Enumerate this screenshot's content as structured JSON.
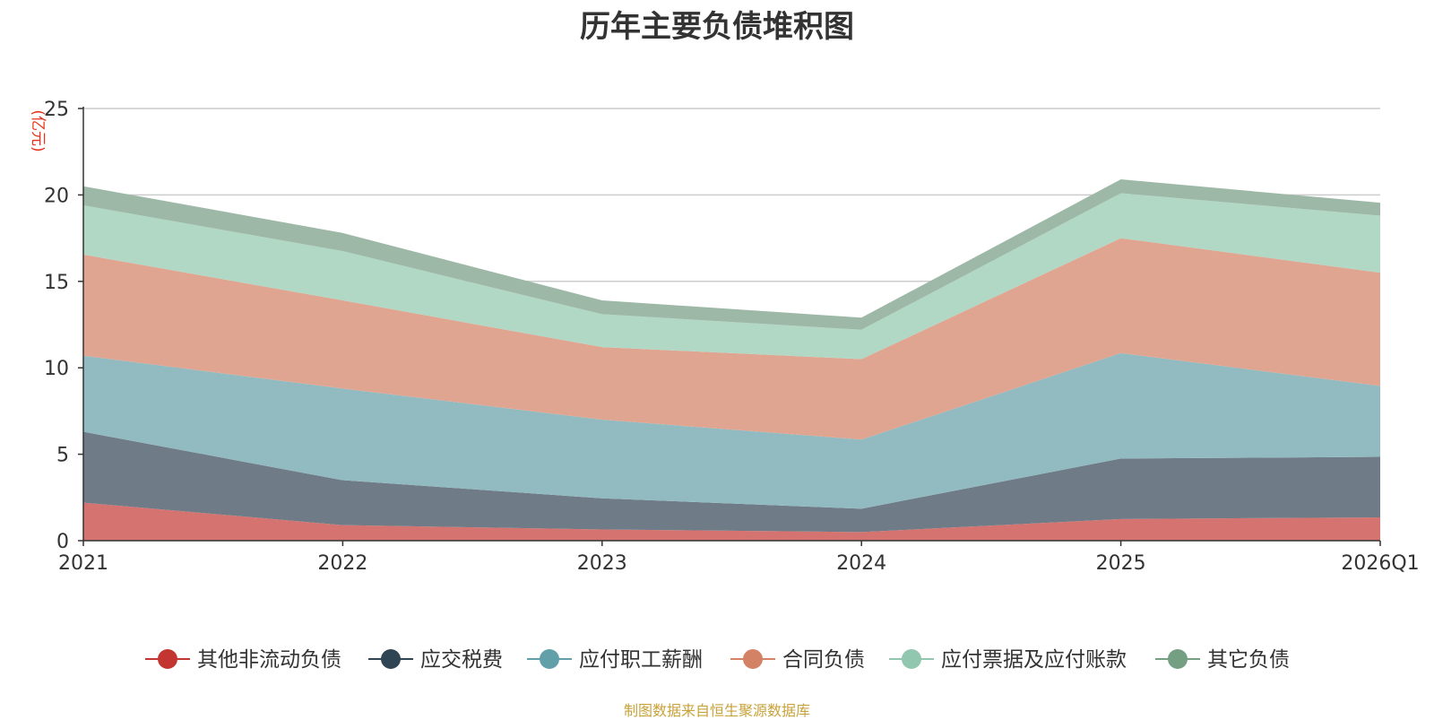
{
  "chart_data": {
    "type": "area",
    "stacked": true,
    "title": "历年主要负债堆积图",
    "ylabel": "(亿元)",
    "xlabel": "",
    "categories": [
      "2021",
      "2022",
      "2023",
      "2024",
      "2025",
      "2026Q1"
    ],
    "ylim": [
      0,
      25
    ],
    "yticks": [
      "0",
      "5",
      "10",
      "15",
      "20",
      "25"
    ],
    "grid": true,
    "legend_position": "bottom",
    "series": [
      {
        "name": "其他非流动负债",
        "color": "#c23531",
        "fill": "#d4736f",
        "values": [
          2.2,
          0.9,
          0.65,
          0.5,
          1.25,
          1.35
        ]
      },
      {
        "name": "应交税费",
        "color": "#2f4554",
        "fill": "#6f7c87",
        "values": [
          4.1,
          2.6,
          1.8,
          1.35,
          3.5,
          3.5
        ]
      },
      {
        "name": "应付职工薪酬",
        "color": "#61a0a8",
        "fill": "#91bbc1",
        "values": [
          4.4,
          5.3,
          4.55,
          4.0,
          6.1,
          4.1
        ]
      },
      {
        "name": "合同负债",
        "color": "#d48265",
        "fill": "#e0a591",
        "values": [
          5.85,
          5.1,
          4.2,
          4.65,
          6.65,
          6.55
        ]
      },
      {
        "name": "应付票据及应付账款",
        "color": "#91c7ae",
        "fill": "#b1d7c5",
        "values": [
          2.85,
          2.85,
          1.9,
          1.7,
          2.6,
          3.3
        ]
      },
      {
        "name": "其它负债",
        "color": "#749f83",
        "fill": "#9db8a6",
        "values": [
          1.1,
          1.05,
          0.8,
          0.7,
          0.8,
          0.75
        ]
      }
    ]
  },
  "source_note": "制图数据来自恒生聚源数据库"
}
